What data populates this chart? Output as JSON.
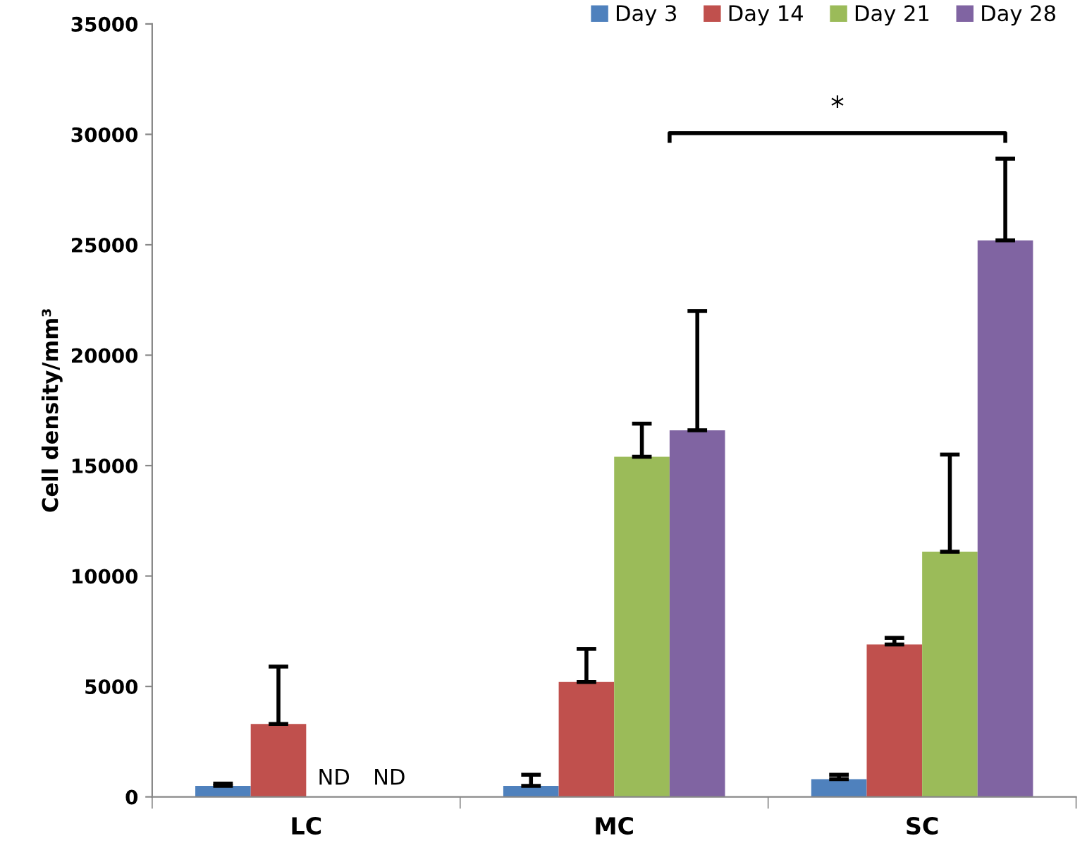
{
  "chart_data": {
    "type": "bar",
    "ylabel": "Cell density/mm³",
    "categories": [
      "LC",
      "MC",
      "SC"
    ],
    "series": [
      {
        "name": "Day 3",
        "color": "#4f81bd",
        "values": [
          500,
          500,
          800
        ],
        "errors": [
          [
            500,
            600
          ],
          [
            500,
            1000
          ],
          [
            800,
            1000
          ]
        ]
      },
      {
        "name": "Day 14",
        "color": "#c0504d",
        "values": [
          3300,
          5200,
          6900
        ],
        "errors": [
          [
            3300,
            5900
          ],
          [
            5200,
            6700
          ],
          [
            6900,
            7200
          ]
        ]
      },
      {
        "name": "Day 21",
        "color": "#9bbb59",
        "values": [
          null,
          15400,
          11100
        ],
        "errors": [
          null,
          [
            15400,
            16900
          ],
          [
            11100,
            15500
          ]
        ],
        "value_labels": [
          "ND",
          null,
          null
        ]
      },
      {
        "name": "Day 28",
        "color": "#8064a2",
        "values": [
          null,
          16600,
          25200
        ],
        "errors": [
          null,
          [
            16600,
            22000
          ],
          [
            25200,
            28900
          ]
        ],
        "value_labels": [
          "ND",
          null,
          null
        ]
      }
    ],
    "ylim": [
      0,
      35000
    ],
    "yticks": [
      0,
      5000,
      10000,
      15000,
      20000,
      25000,
      30000,
      35000
    ],
    "annotations": [
      "*"
    ],
    "legend": "top right",
    "grid": false
  }
}
